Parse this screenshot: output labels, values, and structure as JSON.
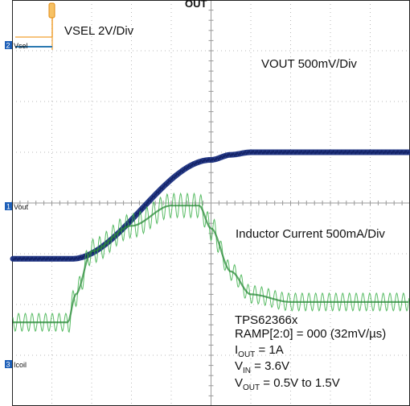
{
  "chart_data": {
    "type": "line",
    "title": "",
    "header_fragment": "OUT",
    "xlabel": "",
    "ylabel": "",
    "grid": true,
    "grid_divisions": {
      "x": 10,
      "y": 8
    },
    "series": [
      {
        "name": "VSEL",
        "color": "#f0a030",
        "channel_marker": "2",
        "channel_label": "Vsel",
        "scale_label": "VSEL 2V/Div"
      },
      {
        "name": "VOUT",
        "color": "#1a2f80",
        "channel_marker": "1",
        "channel_label": "Vout",
        "scale_label": "VOUT 500mV/Div",
        "x_div": [
          0,
          1.5,
          5,
          5.5,
          6,
          10
        ],
        "y_div": [
          -1.1,
          -1.1,
          0.85,
          0.95,
          1.0,
          1.0
        ]
      },
      {
        "name": "Inductor Current",
        "color": "#3cb04a",
        "channel_marker": "3",
        "channel_label": "Icoil",
        "scale_label": "Inductor Current 500mA/Div",
        "x_div": [
          0,
          1.4,
          1.6,
          2,
          3,
          4,
          4.7,
          5.0,
          5.5,
          6,
          7,
          10
        ],
        "y_div": [
          -2.35,
          -2.35,
          -1.8,
          -0.95,
          -0.45,
          -0.05,
          -0.05,
          -0.5,
          -1.35,
          -1.8,
          -1.95,
          -1.95
        ]
      }
    ],
    "annotations": [
      "TPS62366x",
      "RAMP[2:0] = 000 (32mV/µs)",
      "I_OUT = 1A",
      "V_IN = 3.6V",
      "V_OUT = 0.5V to 1.5V"
    ],
    "annotation_parts": {
      "device": "TPS62366x",
      "ramp": "RAMP[2:0] = 000 (32mV/µs)",
      "iout": {
        "main": "I",
        "sub": "OUT",
        "rest": " = 1A"
      },
      "vin": {
        "main": "V",
        "sub": "IN",
        "rest": " = 3.6V"
      },
      "vout": {
        "main": "V",
        "sub": "OUT",
        "rest": " = 0.5V to 1.5V"
      }
    }
  }
}
